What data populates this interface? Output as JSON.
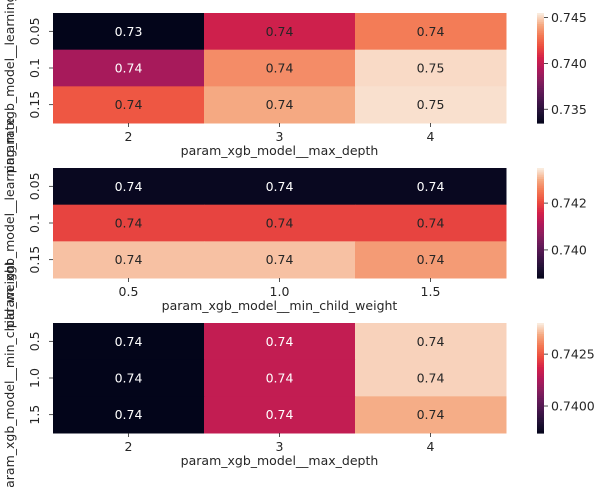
{
  "chart_data": [
    {
      "type": "heatmap",
      "xlabel": "param_xgb_model__max_depth",
      "ylabel": "param_xgb_model__learning_rate",
      "x_categories": [
        "2",
        "3",
        "4"
      ],
      "y_categories": [
        "0.05",
        "0.1",
        "0.15"
      ],
      "values": [
        [
          0.733,
          0.7405,
          0.7432
        ],
        [
          0.7392,
          0.7436,
          0.7452
        ],
        [
          0.7422,
          0.7443,
          0.7453
        ]
      ],
      "cell_labels": [
        [
          "0.73",
          "0.74",
          "0.74"
        ],
        [
          "0.74",
          "0.74",
          "0.75"
        ],
        [
          "0.74",
          "0.74",
          "0.75"
        ]
      ],
      "vmin": 0.7335,
      "vmax": 0.7455,
      "colorbar_ticks": [
        0.735,
        0.74,
        0.745
      ],
      "colorbar_labels": [
        "0.735",
        "0.740",
        "0.745"
      ],
      "colormap": "rocket"
    },
    {
      "type": "heatmap",
      "xlabel": "param_xgb_model__min_child_weight",
      "ylabel": "param_xgb_model__learning_rate",
      "x_categories": [
        "0.5",
        "1.0",
        "1.5"
      ],
      "y_categories": [
        "0.05",
        "0.1",
        "0.15"
      ],
      "values": [
        [
          0.7389,
          0.7389,
          0.7389
        ],
        [
          0.742,
          0.742,
          0.742
        ],
        [
          0.7432,
          0.7432,
          0.7429
        ]
      ],
      "cell_labels": [
        [
          "0.74",
          "0.74",
          "0.74"
        ],
        [
          "0.74",
          "0.74",
          "0.74"
        ],
        [
          "0.74",
          "0.74",
          "0.74"
        ]
      ],
      "vmin": 0.7388,
      "vmax": 0.7435,
      "colorbar_ticks": [
        0.74,
        0.742
      ],
      "colorbar_labels": [
        "0.740",
        "0.742"
      ],
      "colormap": "rocket"
    },
    {
      "type": "heatmap",
      "xlabel": "param_xgb_model__max_depth",
      "ylabel": "param_xgb_model__min_child_weight",
      "x_categories": [
        "2",
        "3",
        "4"
      ],
      "y_categories": [
        "0.5",
        "1.0",
        "1.5"
      ],
      "values": [
        [
          0.7387,
          0.7416,
          0.7438
        ],
        [
          0.7387,
          0.7416,
          0.7438
        ],
        [
          0.7387,
          0.7416,
          0.7435
        ]
      ],
      "cell_labels": [
        [
          "0.74",
          "0.74",
          "0.74"
        ],
        [
          "0.74",
          "0.74",
          "0.74"
        ],
        [
          "0.74",
          "0.74",
          "0.74"
        ]
      ],
      "vmin": 0.7387,
      "vmax": 0.744,
      "colorbar_ticks": [
        0.74,
        0.7425
      ],
      "colorbar_labels": [
        "0.7400",
        "0.7425"
      ],
      "colormap": "rocket"
    }
  ]
}
